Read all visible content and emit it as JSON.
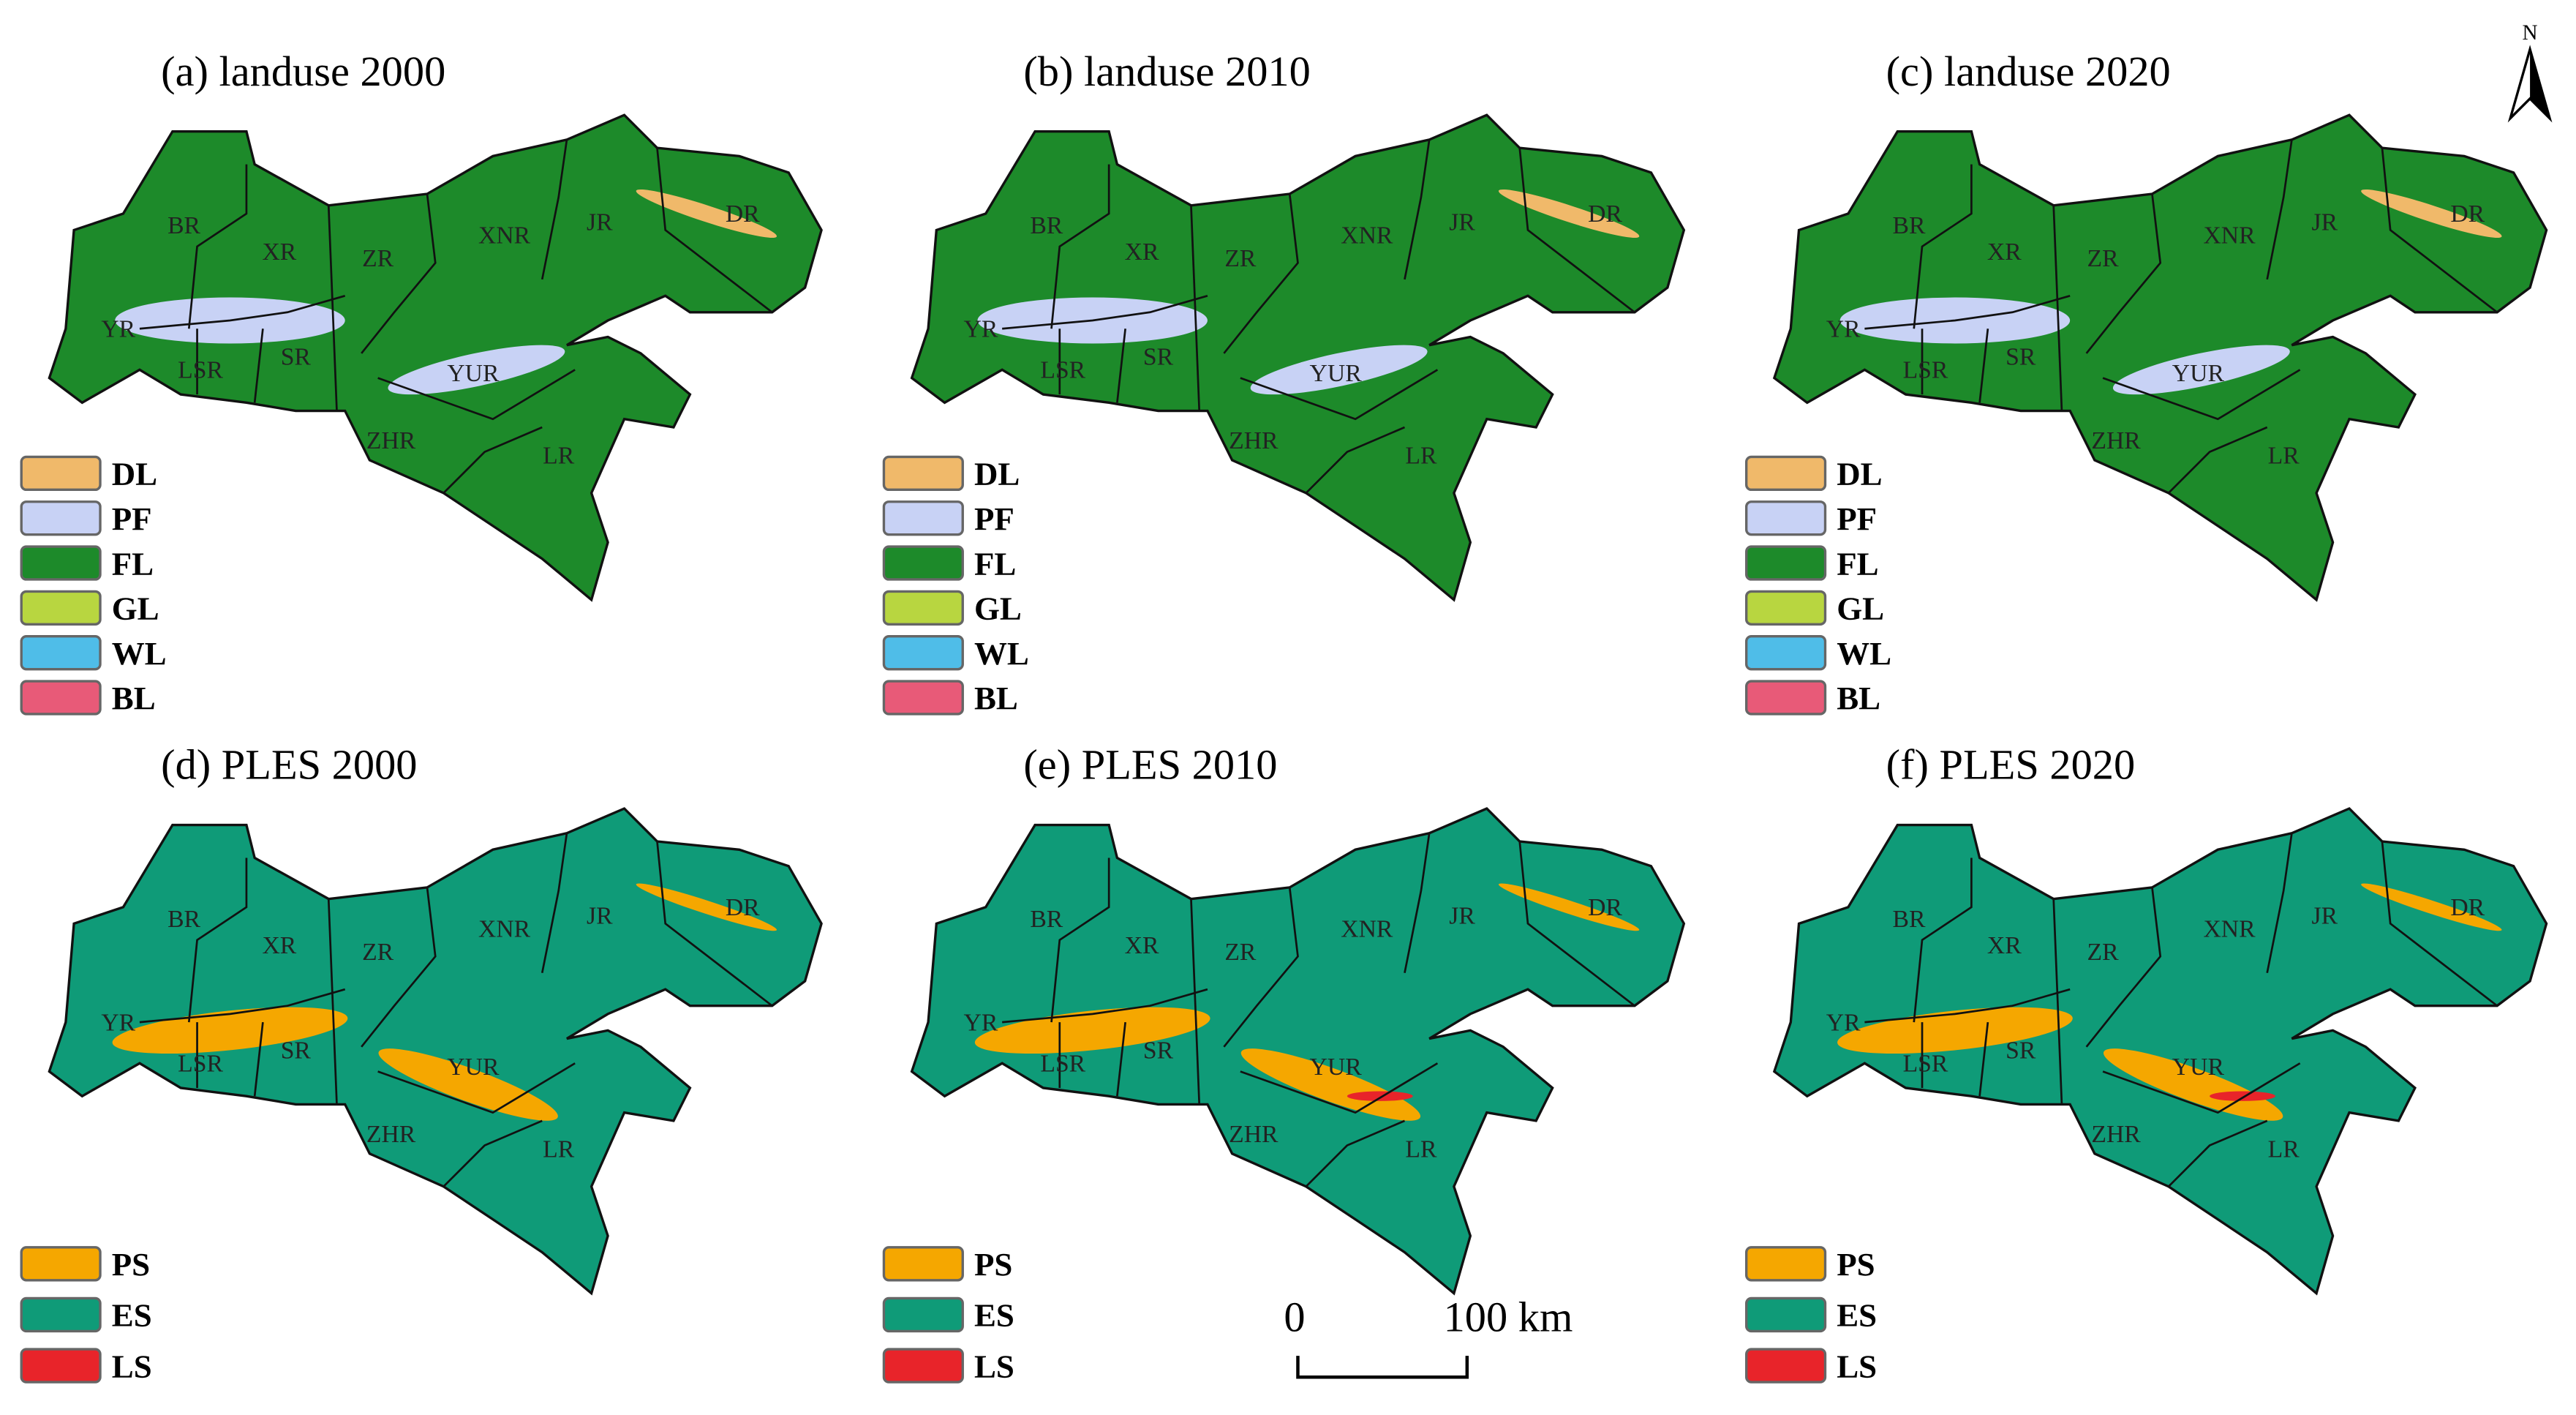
{
  "panels": [
    {
      "title": "(a) landuse 2000",
      "kind": "landuse"
    },
    {
      "title": "(b) landuse 2010",
      "kind": "landuse"
    },
    {
      "title": "(c) landuse 2020",
      "kind": "landuse"
    },
    {
      "title": "(d) PLES 2000",
      "kind": "ples"
    },
    {
      "title": "(e) PLES 2010",
      "kind": "ples"
    },
    {
      "title": "(f) PLES 2020",
      "kind": "ples"
    }
  ],
  "region_labels": [
    "BR",
    "XR",
    "ZR",
    "XNR",
    "JR",
    "DR",
    "YR",
    "LSR",
    "SR",
    "YUR",
    "ZHR",
    "LR"
  ],
  "landuse_legend": [
    {
      "label": "DL",
      "color": "#f0b96a"
    },
    {
      "label": "PF",
      "color": "#c8d2f5"
    },
    {
      "label": "FL",
      "color": "#1d8a2a"
    },
    {
      "label": "GL",
      "color": "#b8d640"
    },
    {
      "label": "WL",
      "color": "#4fbde8"
    },
    {
      "label": "BL",
      "color": "#e85a78"
    }
  ],
  "ples_legend": [
    {
      "label": "PS",
      "color": "#f5a700"
    },
    {
      "label": "ES",
      "color": "#0f9b78"
    },
    {
      "label": "LS",
      "color": "#e8242a"
    }
  ],
  "scale_bar": {
    "start": "0",
    "end": "100 km"
  },
  "north": "N"
}
